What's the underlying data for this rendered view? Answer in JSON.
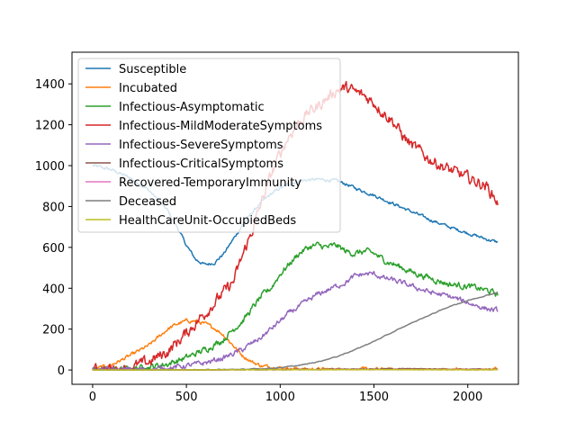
{
  "chart_data": {
    "type": "line",
    "title": "",
    "xlabel": "",
    "ylabel": "",
    "xlim": [
      -110,
      2270
    ],
    "ylim": [
      -70,
      1555
    ],
    "xticks": [
      0,
      500,
      1000,
      1500,
      2000
    ],
    "yticks": [
      0,
      200,
      400,
      600,
      800,
      1000,
      1200,
      1400
    ],
    "grid": false,
    "legend_position": "top-left",
    "series": [
      {
        "name": "Susceptible",
        "color": "#1f77b4",
        "noise": 6,
        "points": [
          [
            0,
            1000
          ],
          [
            100,
            980
          ],
          [
            200,
            940
          ],
          [
            300,
            880
          ],
          [
            400,
            780
          ],
          [
            450,
            700
          ],
          [
            500,
            610
          ],
          [
            550,
            540
          ],
          [
            600,
            515
          ],
          [
            650,
            525
          ],
          [
            700,
            570
          ],
          [
            750,
            640
          ],
          [
            800,
            710
          ],
          [
            850,
            770
          ],
          [
            900,
            820
          ],
          [
            950,
            860
          ],
          [
            1000,
            890
          ],
          [
            1050,
            910
          ],
          [
            1100,
            925
          ],
          [
            1150,
            930
          ],
          [
            1200,
            932
          ],
          [
            1250,
            930
          ],
          [
            1300,
            925
          ],
          [
            1350,
            910
          ],
          [
            1400,
            890
          ],
          [
            1500,
            855
          ],
          [
            1600,
            815
          ],
          [
            1700,
            775
          ],
          [
            1800,
            735
          ],
          [
            1900,
            700
          ],
          [
            2000,
            670
          ],
          [
            2100,
            640
          ],
          [
            2160,
            625
          ]
        ]
      },
      {
        "name": "Incubated",
        "color": "#ff7f0e",
        "noise": 7,
        "points": [
          [
            0,
            2
          ],
          [
            100,
            25
          ],
          [
            200,
            70
          ],
          [
            300,
            120
          ],
          [
            350,
            160
          ],
          [
            400,
            200
          ],
          [
            450,
            225
          ],
          [
            500,
            240
          ],
          [
            550,
            240
          ],
          [
            600,
            225
          ],
          [
            650,
            205
          ],
          [
            700,
            170
          ],
          [
            750,
            120
          ],
          [
            800,
            70
          ],
          [
            850,
            40
          ],
          [
            900,
            20
          ],
          [
            1000,
            10
          ],
          [
            1100,
            5
          ],
          [
            1200,
            3
          ],
          [
            1400,
            2
          ],
          [
            2160,
            1
          ]
        ]
      },
      {
        "name": "Infectious-Asymptomatic",
        "color": "#2ca02c",
        "noise": 12,
        "points": [
          [
            0,
            0
          ],
          [
            200,
            5
          ],
          [
            300,
            15
          ],
          [
            400,
            30
          ],
          [
            500,
            60
          ],
          [
            600,
            100
          ],
          [
            700,
            150
          ],
          [
            750,
            200
          ],
          [
            800,
            240
          ],
          [
            850,
            300
          ],
          [
            900,
            360
          ],
          [
            950,
            400
          ],
          [
            1000,
            470
          ],
          [
            1050,
            520
          ],
          [
            1100,
            570
          ],
          [
            1150,
            600
          ],
          [
            1200,
            610
          ],
          [
            1250,
            600
          ],
          [
            1300,
            610
          ],
          [
            1350,
            580
          ],
          [
            1400,
            570
          ],
          [
            1450,
            580
          ],
          [
            1500,
            570
          ],
          [
            1550,
            540
          ],
          [
            1600,
            520
          ],
          [
            1700,
            480
          ],
          [
            1800,
            450
          ],
          [
            1900,
            420
          ],
          [
            2000,
            410
          ],
          [
            2100,
            390
          ],
          [
            2160,
            370
          ]
        ]
      },
      {
        "name": "Infectious-MildModerateSymptoms",
        "color": "#d62728",
        "noise": 22,
        "points": [
          [
            0,
            0
          ],
          [
            200,
            10
          ],
          [
            300,
            40
          ],
          [
            400,
            90
          ],
          [
            500,
            180
          ],
          [
            600,
            280
          ],
          [
            700,
            380
          ],
          [
            750,
            430
          ],
          [
            800,
            560
          ],
          [
            850,
            680
          ],
          [
            900,
            820
          ],
          [
            950,
            950
          ],
          [
            1000,
            1060
          ],
          [
            1050,
            1150
          ],
          [
            1100,
            1210
          ],
          [
            1150,
            1260
          ],
          [
            1200,
            1290
          ],
          [
            1250,
            1330
          ],
          [
            1300,
            1370
          ],
          [
            1350,
            1380
          ],
          [
            1400,
            1360
          ],
          [
            1450,
            1340
          ],
          [
            1500,
            1310
          ],
          [
            1550,
            1260
          ],
          [
            1600,
            1220
          ],
          [
            1650,
            1150
          ],
          [
            1700,
            1100
          ],
          [
            1800,
            1030
          ],
          [
            1900,
            980
          ],
          [
            2000,
            940
          ],
          [
            2100,
            900
          ],
          [
            2160,
            820
          ]
        ]
      },
      {
        "name": "Infectious-SevereSymptoms",
        "color": "#9467bd",
        "noise": 10,
        "points": [
          [
            0,
            0
          ],
          [
            300,
            3
          ],
          [
            400,
            10
          ],
          [
            500,
            20
          ],
          [
            600,
            35
          ],
          [
            700,
            60
          ],
          [
            800,
            100
          ],
          [
            900,
            160
          ],
          [
            950,
            200
          ],
          [
            1000,
            240
          ],
          [
            1050,
            280
          ],
          [
            1100,
            310
          ],
          [
            1150,
            340
          ],
          [
            1200,
            370
          ],
          [
            1250,
            390
          ],
          [
            1300,
            410
          ],
          [
            1350,
            430
          ],
          [
            1400,
            460
          ],
          [
            1450,
            470
          ],
          [
            1500,
            470
          ],
          [
            1550,
            450
          ],
          [
            1600,
            440
          ],
          [
            1700,
            410
          ],
          [
            1800,
            380
          ],
          [
            1900,
            360
          ],
          [
            2000,
            330
          ],
          [
            2100,
            300
          ],
          [
            2160,
            290
          ]
        ]
      },
      {
        "name": "Infectious-CriticalSymptoms",
        "color": "#8c564b",
        "noise": 1.5,
        "points": [
          [
            0,
            0
          ],
          [
            600,
            0
          ],
          [
            800,
            1
          ],
          [
            1000,
            2
          ],
          [
            1200,
            3
          ],
          [
            1400,
            5
          ],
          [
            1600,
            6
          ],
          [
            1800,
            5
          ],
          [
            2000,
            4
          ],
          [
            2160,
            3
          ]
        ]
      },
      {
        "name": "Recovered-TemporaryImmunity",
        "color": "#e377c2",
        "noise": 0.8,
        "points": [
          [
            0,
            0
          ],
          [
            1000,
            1
          ],
          [
            1500,
            2
          ],
          [
            2160,
            2
          ]
        ]
      },
      {
        "name": "Deceased",
        "color": "#7f7f7f",
        "noise": 1.5,
        "points": [
          [
            0,
            0
          ],
          [
            400,
            0
          ],
          [
            600,
            1
          ],
          [
            800,
            3
          ],
          [
            900,
            6
          ],
          [
            1000,
            12
          ],
          [
            1100,
            22
          ],
          [
            1200,
            40
          ],
          [
            1300,
            65
          ],
          [
            1400,
            100
          ],
          [
            1500,
            140
          ],
          [
            1600,
            185
          ],
          [
            1700,
            230
          ],
          [
            1800,
            270
          ],
          [
            1900,
            310
          ],
          [
            2000,
            340
          ],
          [
            2100,
            365
          ],
          [
            2160,
            380
          ]
        ]
      },
      {
        "name": "HealthCareUnit-OccupiedBeds",
        "color": "#bcbd22",
        "noise": 0.6,
        "points": [
          [
            0,
            0
          ],
          [
            1000,
            1
          ],
          [
            1500,
            2
          ],
          [
            2160,
            1
          ]
        ]
      }
    ]
  }
}
